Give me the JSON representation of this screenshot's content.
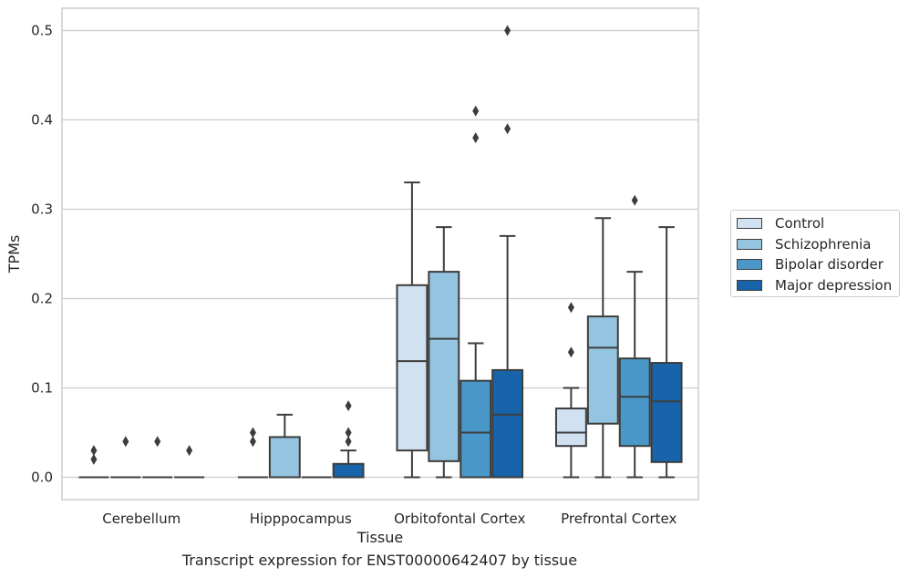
{
  "chart_data": {
    "type": "box",
    "xlabel": "Tissue",
    "ylabel": "TPMs",
    "caption": "Transcript expression for ENST00000642407 by tissue",
    "ylim": [
      -0.025,
      0.525
    ],
    "yticks": [
      0.0,
      0.1,
      0.2,
      0.3,
      0.4,
      0.5
    ],
    "ytick_labels": [
      "0.0",
      "0.1",
      "0.2",
      "0.3",
      "0.4",
      "0.5"
    ],
    "grid": "horizontal",
    "legend_position": "right",
    "categories": [
      "Cerebellum",
      "Hipppocampus",
      "Orbitofontal Cortex",
      "Prefrontal Cortex"
    ],
    "series": [
      {
        "name": "Control",
        "color": "#d0e1f2",
        "boxes": [
          {
            "q1": 0,
            "median": 0,
            "q3": 0,
            "whisker_low": 0,
            "whisker_high": 0,
            "outliers": [
              0.02,
              0.03
            ]
          },
          {
            "q1": 0,
            "median": 0,
            "q3": 0,
            "whisker_low": 0,
            "whisker_high": 0,
            "outliers": [
              0.04,
              0.05
            ]
          },
          {
            "q1": 0.03,
            "median": 0.13,
            "q3": 0.215,
            "whisker_low": 0,
            "whisker_high": 0.33,
            "outliers": []
          },
          {
            "q1": 0.035,
            "median": 0.05,
            "q3": 0.077,
            "whisker_low": 0,
            "whisker_high": 0.1,
            "outliers": [
              0.14,
              0.19
            ]
          }
        ]
      },
      {
        "name": "Schizophrenia",
        "color": "#94c4df",
        "boxes": [
          {
            "q1": 0,
            "median": 0,
            "q3": 0,
            "whisker_low": 0,
            "whisker_high": 0,
            "outliers": [
              0.04
            ]
          },
          {
            "q1": 0,
            "median": 0,
            "q3": 0.045,
            "whisker_low": 0,
            "whisker_high": 0.07,
            "outliers": []
          },
          {
            "q1": 0.018,
            "median": 0.155,
            "q3": 0.23,
            "whisker_low": 0,
            "whisker_high": 0.28,
            "outliers": []
          },
          {
            "q1": 0.06,
            "median": 0.145,
            "q3": 0.18,
            "whisker_low": 0,
            "whisker_high": 0.29,
            "outliers": []
          }
        ]
      },
      {
        "name": "Bipolar disorder",
        "color": "#4a98c9",
        "boxes": [
          {
            "q1": 0,
            "median": 0,
            "q3": 0,
            "whisker_low": 0,
            "whisker_high": 0,
            "outliers": [
              0.04
            ]
          },
          {
            "q1": 0,
            "median": 0,
            "q3": 0,
            "whisker_low": 0,
            "whisker_high": 0,
            "outliers": []
          },
          {
            "q1": 0,
            "median": 0.05,
            "q3": 0.108,
            "whisker_low": 0,
            "whisker_high": 0.15,
            "outliers": [
              0.38,
              0.41
            ]
          },
          {
            "q1": 0.035,
            "median": 0.09,
            "q3": 0.133,
            "whisker_low": 0,
            "whisker_high": 0.23,
            "outliers": [
              0.31
            ]
          }
        ]
      },
      {
        "name": "Major depression",
        "color": "#1764ab",
        "boxes": [
          {
            "q1": 0,
            "median": 0,
            "q3": 0,
            "whisker_low": 0,
            "whisker_high": 0,
            "outliers": [
              0.03
            ]
          },
          {
            "q1": 0,
            "median": 0,
            "q3": 0.015,
            "whisker_low": 0,
            "whisker_high": 0.03,
            "outliers": [
              0.04,
              0.05,
              0.08
            ]
          },
          {
            "q1": 0,
            "median": 0.07,
            "q3": 0.12,
            "whisker_low": 0,
            "whisker_high": 0.27,
            "outliers": [
              0.39,
              0.5
            ]
          },
          {
            "q1": 0.017,
            "median": 0.085,
            "q3": 0.128,
            "whisker_low": 0,
            "whisker_high": 0.28,
            "outliers": []
          }
        ]
      }
    ]
  }
}
